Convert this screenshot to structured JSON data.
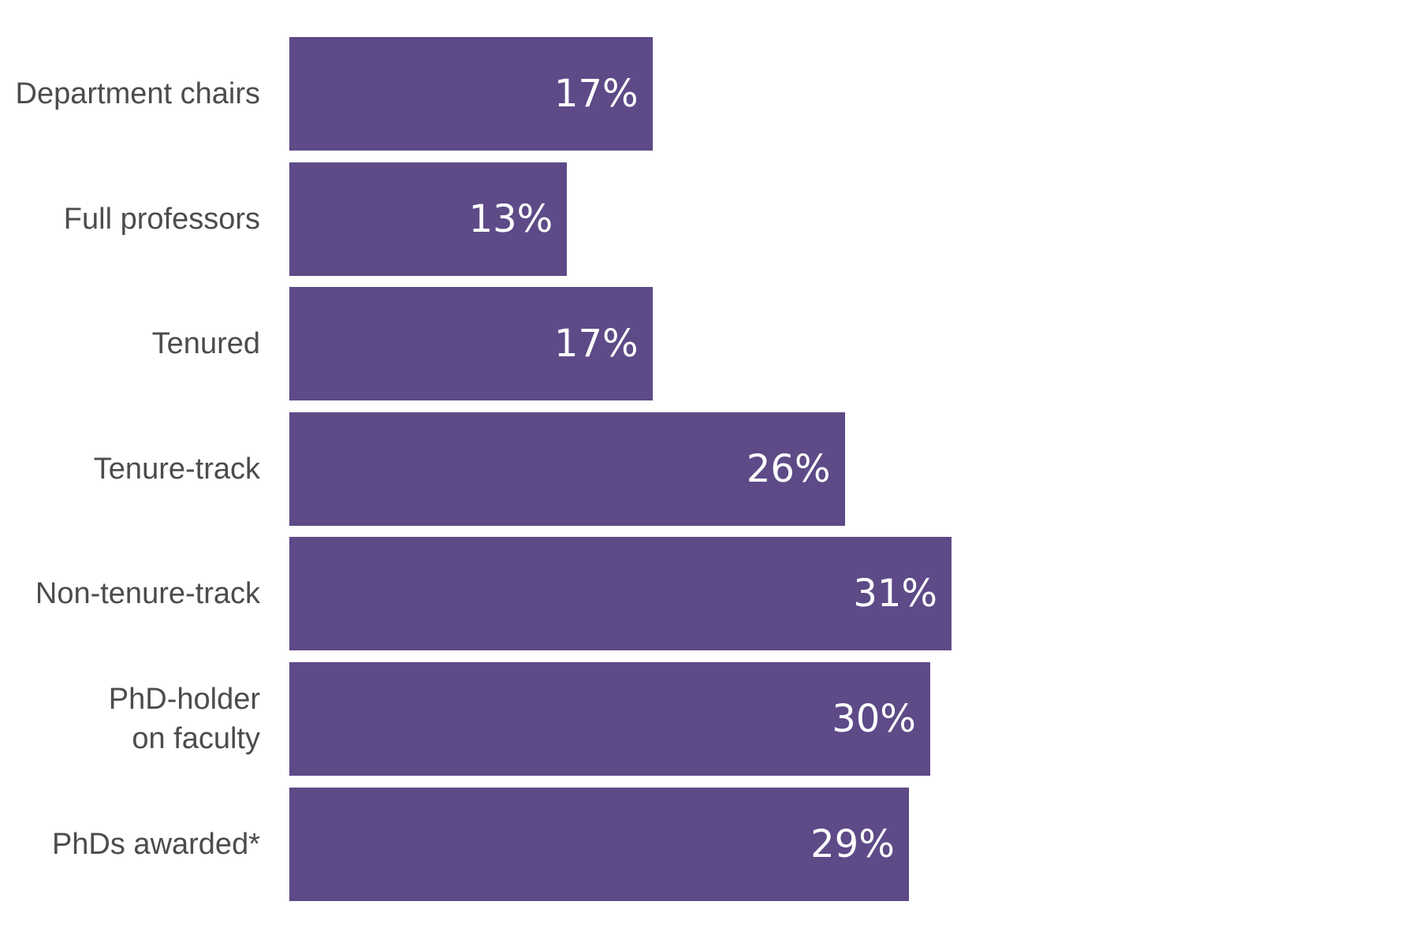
{
  "chart_data": {
    "type": "bar",
    "orientation": "horizontal",
    "title": "",
    "xlabel": "",
    "ylabel": "",
    "legend": "none",
    "grid": false,
    "axes_visible": false,
    "xlim": [
      0,
      31
    ],
    "categories": [
      "Department chairs",
      "Full professors",
      "Tenured",
      "Tenure-track",
      "Non-tenure-track",
      "PhD-holder\non faculty",
      "PhDs awarded*"
    ],
    "values": [
      17,
      13,
      17,
      26,
      31,
      30,
      29
    ],
    "value_labels": [
      "17%",
      "13%",
      "17%",
      "26%",
      "31%",
      "30%",
      "29%"
    ],
    "unit": "%",
    "colors": {
      "bar": "#5d4a87",
      "value_label": "#ffffff",
      "category_label": "#4c4c4c",
      "background": "#ffffff"
    }
  }
}
